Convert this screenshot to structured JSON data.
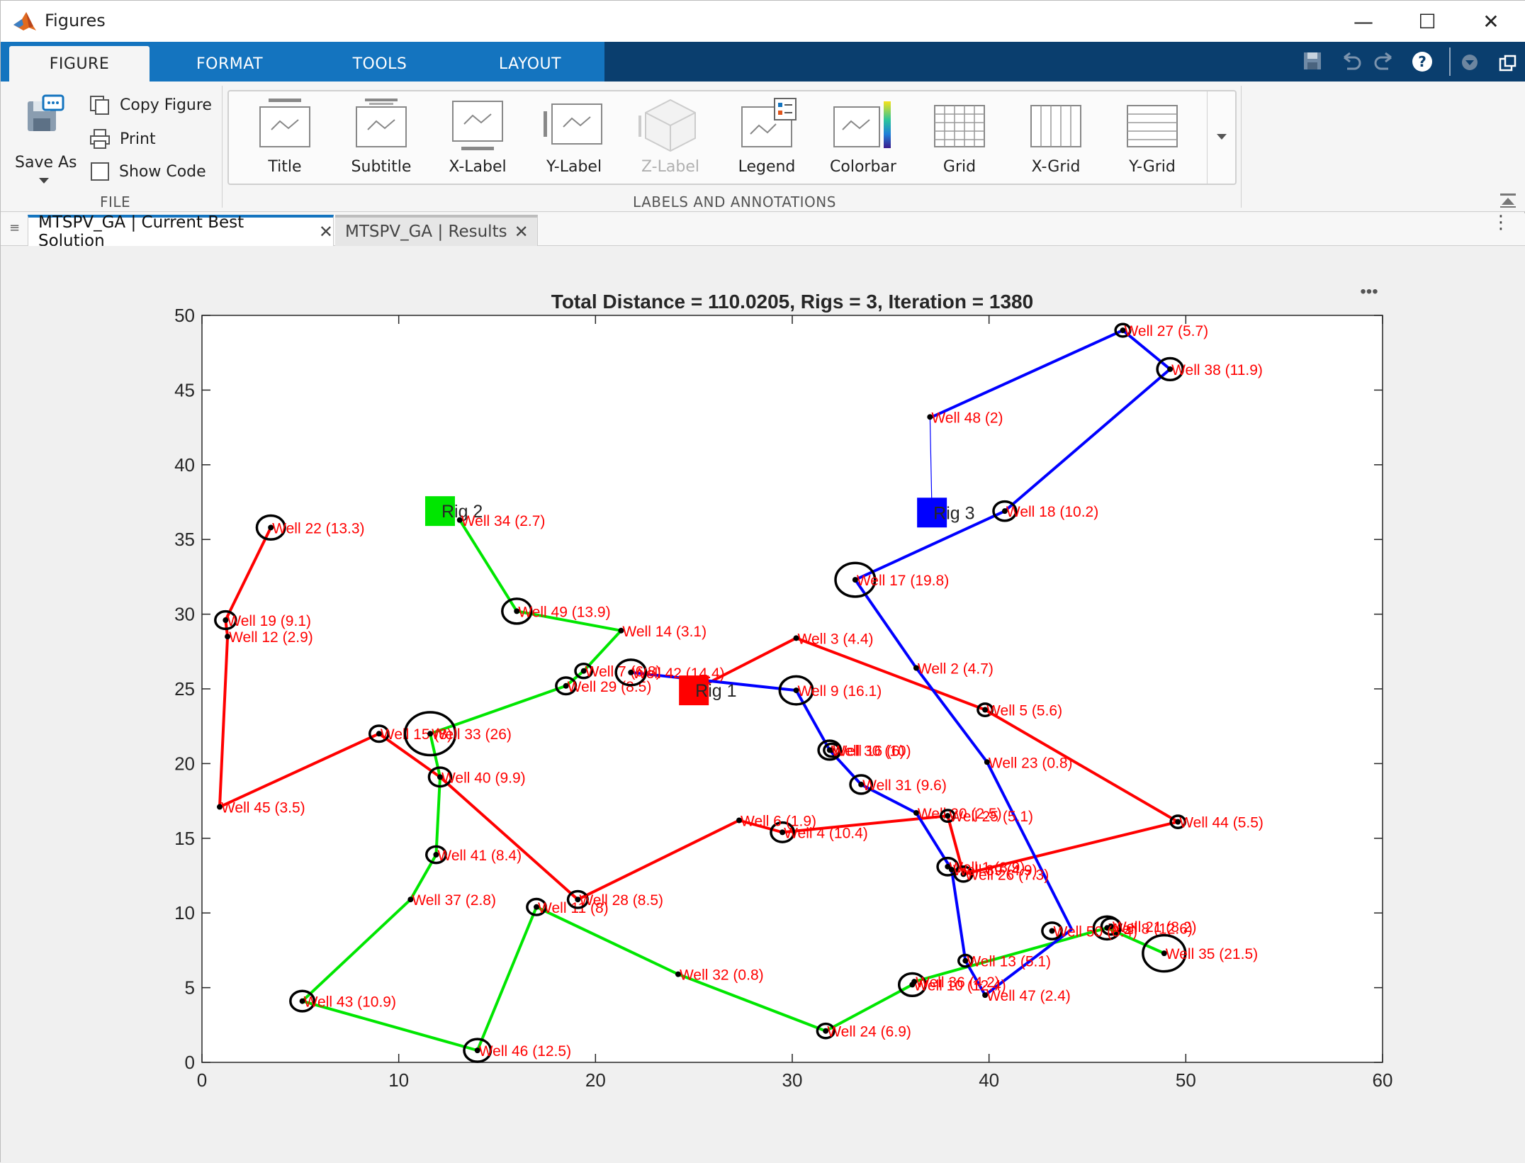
{
  "window": {
    "title": "Figures",
    "controls": {
      "minimize": "—",
      "maximize": "☐",
      "close": "✕"
    }
  },
  "ribbon": {
    "tabs": [
      {
        "label": "FIGURE",
        "active": true
      },
      {
        "label": "FORMAT",
        "active": false
      },
      {
        "label": "TOOLS",
        "active": false
      },
      {
        "label": "LAYOUT",
        "active": false
      }
    ],
    "quick_access": [
      "save-icon",
      "undo-icon",
      "redo-icon",
      "help-icon",
      "dropdown-icon",
      "undock-icon"
    ],
    "file_section": {
      "label": "FILE",
      "save_as": "Save As",
      "copy_figure": "Copy Figure",
      "print": "Print",
      "show_code": "Show Code"
    },
    "labels_section": {
      "label": "LABELS AND ANNOTATIONS",
      "items": [
        {
          "label": "Title",
          "icon": "title-icon",
          "enabled": true
        },
        {
          "label": "Subtitle",
          "icon": "subtitle-icon",
          "enabled": true
        },
        {
          "label": "X-Label",
          "icon": "xlabel-icon",
          "enabled": true
        },
        {
          "label": "Y-Label",
          "icon": "ylabel-icon",
          "enabled": true
        },
        {
          "label": "Z-Label",
          "icon": "zlabel-icon",
          "enabled": false
        },
        {
          "label": "Legend",
          "icon": "legend-icon",
          "enabled": true
        },
        {
          "label": "Colorbar",
          "icon": "colorbar-icon",
          "enabled": true
        },
        {
          "label": "Grid",
          "icon": "grid-icon",
          "enabled": true
        },
        {
          "label": "X-Grid",
          "icon": "xgrid-icon",
          "enabled": true
        },
        {
          "label": "Y-Grid",
          "icon": "ygrid-icon",
          "enabled": true
        }
      ]
    }
  },
  "doc_tabs": [
    {
      "label": "MTSPV_GA | Current Best Solution",
      "active": true
    },
    {
      "label": "MTSPV_GA | Results",
      "active": false
    }
  ],
  "axes_menu": "•••",
  "chart_data": {
    "type": "scatter",
    "title": "Total Distance = 110.0205, Rigs = 3, Iteration = 1380",
    "xlim": [
      0,
      60
    ],
    "ylim": [
      0,
      50
    ],
    "xticks": [
      0,
      10,
      20,
      30,
      40,
      50,
      60
    ],
    "yticks": [
      0,
      5,
      10,
      15,
      20,
      25,
      30,
      35,
      40,
      45,
      50
    ],
    "grid": false,
    "colors": {
      "rig1": "#ff0000",
      "rig2": "#00e600",
      "rig3": "#0000ff",
      "label": "#ff0000",
      "circle": "#000000"
    },
    "rigs": [
      {
        "label": "Rig 1",
        "x": 25.0,
        "y": 24.9,
        "color": "#ff0000"
      },
      {
        "label": "Rig 2",
        "x": 12.1,
        "y": 36.9,
        "color": "#00e600"
      },
      {
        "label": "Rig 3",
        "x": 37.1,
        "y": 36.8,
        "color": "#0000ff"
      }
    ],
    "wells": [
      {
        "label": "Well 1 (8.9)",
        "x": 37.9,
        "y": 13.1,
        "r": 8.9
      },
      {
        "label": "Well 2 (4.7)",
        "x": 36.3,
        "y": 26.4,
        "r": 4.7
      },
      {
        "label": "Well 3 (4.4)",
        "x": 30.2,
        "y": 28.4,
        "r": 4.4
      },
      {
        "label": "Well 4 (10.4)",
        "x": 29.5,
        "y": 15.4,
        "r": 10.4
      },
      {
        "label": "Well 5 (5.6)",
        "x": 39.8,
        "y": 23.6,
        "r": 5.6
      },
      {
        "label": "Well 6 (1.9)",
        "x": 27.3,
        "y": 16.2,
        "r": 1.9
      },
      {
        "label": "Well 7 (6.8)",
        "x": 19.4,
        "y": 26.2,
        "r": 6.8
      },
      {
        "label": "Well 8 (12.6)",
        "x": 46.0,
        "y": 9.0,
        "r": 12.6
      },
      {
        "label": "Well 9 (16.1)",
        "x": 30.2,
        "y": 24.9,
        "r": 16.1
      },
      {
        "label": "Well 10 (12.4)",
        "x": 36.1,
        "y": 5.2,
        "r": 12.4
      },
      {
        "label": "Well 11 (8)",
        "x": 17.0,
        "y": 10.4,
        "r": 8
      },
      {
        "label": "Well 12 (2.9)",
        "x": 1.3,
        "y": 28.5,
        "r": 2.9
      },
      {
        "label": "Well 13 (5.1)",
        "x": 38.8,
        "y": 6.8,
        "r": 5.1
      },
      {
        "label": "Well 14 (3.1)",
        "x": 21.3,
        "y": 28.9,
        "r": 3.1
      },
      {
        "label": "Well 15 (8)",
        "x": 9.0,
        "y": 22.0,
        "r": 8
      },
      {
        "label": "Well 16 (6)",
        "x": 32.0,
        "y": 20.9,
        "r": 6
      },
      {
        "label": "Well 17 (19.8)",
        "x": 33.2,
        "y": 32.3,
        "r": 19.8
      },
      {
        "label": "Well 18 (10.2)",
        "x": 40.8,
        "y": 36.9,
        "r": 10.2
      },
      {
        "label": "Well 19 (9.1)",
        "x": 1.2,
        "y": 29.6,
        "r": 9.1
      },
      {
        "label": "Well 20 (2.5)",
        "x": 36.3,
        "y": 16.7,
        "r": 2.5
      },
      {
        "label": "Well 21 (8.2)",
        "x": 46.2,
        "y": 9.1,
        "r": 8.2
      },
      {
        "label": "Well 22 (13.3)",
        "x": 3.5,
        "y": 35.8,
        "r": 13.3
      },
      {
        "label": "Well 23 (0.8)",
        "x": 39.9,
        "y": 20.1,
        "r": 0.8
      },
      {
        "label": "Well 24 (6.9)",
        "x": 31.7,
        "y": 2.1,
        "r": 6.9
      },
      {
        "label": "Well 25 (5.1)",
        "x": 37.9,
        "y": 16.5,
        "r": 5.1
      },
      {
        "label": "Well 26 (7.3)",
        "x": 38.7,
        "y": 12.6,
        "r": 7.3
      },
      {
        "label": "Well 27 (5.7)",
        "x": 46.8,
        "y": 49.0,
        "r": 5.7
      },
      {
        "label": "Well 28 (8.5)",
        "x": 19.1,
        "y": 10.9,
        "r": 8.5
      },
      {
        "label": "Well 29 (8.5)",
        "x": 18.5,
        "y": 25.2,
        "r": 8.5
      },
      {
        "label": "Well 30 (10)",
        "x": 31.9,
        "y": 20.9,
        "r": 10
      },
      {
        "label": "Well 31 (9.6)",
        "x": 33.5,
        "y": 18.6,
        "r": 9.6
      },
      {
        "label": "Well 32 (0.8)",
        "x": 24.2,
        "y": 5.9,
        "r": 0.8
      },
      {
        "label": "Well 33 (26)",
        "x": 11.6,
        "y": 22.0,
        "r": 26
      },
      {
        "label": "Well 34 (2.7)",
        "x": 13.1,
        "y": 36.3,
        "r": 2.7
      },
      {
        "label": "Well 35 (21.5)",
        "x": 48.9,
        "y": 7.3,
        "r": 21.5
      },
      {
        "label": "Well 36 (4.2)",
        "x": 36.2,
        "y": 5.4,
        "r": 4.2
      },
      {
        "label": "Well 37 (2.8)",
        "x": 10.6,
        "y": 10.9,
        "r": 2.8
      },
      {
        "label": "Well 38 (11.9)",
        "x": 49.2,
        "y": 46.4,
        "r": 11.9
      },
      {
        "label": "Well 39 (4.9)",
        "x": 38.1,
        "y": 12.9,
        "r": 4.9
      },
      {
        "label": "Well 40 (9.9)",
        "x": 12.1,
        "y": 19.1,
        "r": 9.9
      },
      {
        "label": "Well 41 (8.4)",
        "x": 11.9,
        "y": 13.9,
        "r": 8.4
      },
      {
        "label": "Well 42 (14.4)",
        "x": 21.8,
        "y": 26.1,
        "r": 14.4
      },
      {
        "label": "Well 43 (10.9)",
        "x": 5.1,
        "y": 4.1,
        "r": 10.9
      },
      {
        "label": "Well 44 (5.5)",
        "x": 49.6,
        "y": 16.1,
        "r": 5.5
      },
      {
        "label": "Well 45 (3.5)",
        "x": 0.9,
        "y": 17.1,
        "r": 3.5
      },
      {
        "label": "Well 46 (12.5)",
        "x": 14.0,
        "y": 0.8,
        "r": 12.5
      },
      {
        "label": "Well 47 (2.4)",
        "x": 39.8,
        "y": 4.5,
        "r": 2.4
      },
      {
        "label": "Well 48 (2)",
        "x": 37.0,
        "y": 43.2,
        "r": 2
      },
      {
        "label": "Well 49 (13.9)",
        "x": 16.0,
        "y": 30.2,
        "r": 13.9
      },
      {
        "label": "Well 50 (8.4)",
        "x": 43.2,
        "y": 8.8,
        "r": 8.4
      }
    ],
    "routes": [
      {
        "rig": "Rig 1",
        "color": "#ff0000",
        "width": 4,
        "points": [
          [
            25.0,
            24.9
          ],
          [
            30.2,
            28.4
          ],
          [
            39.8,
            23.6
          ],
          [
            49.6,
            16.1
          ],
          [
            38.7,
            12.6
          ],
          [
            37.9,
            16.5
          ],
          [
            29.5,
            15.4
          ],
          [
            27.3,
            16.2
          ],
          [
            19.1,
            10.9
          ],
          [
            12.1,
            19.1
          ],
          [
            9.0,
            22.0
          ],
          [
            0.9,
            17.1
          ],
          [
            1.3,
            28.5
          ],
          [
            1.2,
            29.6
          ],
          [
            3.5,
            35.8
          ]
        ]
      },
      {
        "rig": "Rig 2",
        "color": "#00e600",
        "width": 4,
        "points": [
          [
            13.1,
            36.3
          ],
          [
            16.0,
            30.2
          ],
          [
            21.3,
            28.9
          ],
          [
            19.4,
            26.2
          ],
          [
            18.5,
            25.2
          ],
          [
            11.6,
            22.0
          ],
          [
            12.1,
            19.1
          ],
          [
            11.9,
            13.9
          ],
          [
            10.6,
            10.9
          ],
          [
            5.1,
            4.1
          ],
          [
            14.0,
            0.8
          ],
          [
            17.0,
            10.4
          ],
          [
            24.2,
            5.9
          ],
          [
            31.7,
            2.1
          ],
          [
            36.1,
            5.2
          ],
          [
            36.2,
            5.4
          ],
          [
            46.0,
            9.0
          ],
          [
            48.9,
            7.3
          ]
        ]
      },
      {
        "rig": "Rig 3",
        "color": "#0000ff",
        "width": 4,
        "points": [
          [
            37.1,
            43.2
          ],
          [
            46.8,
            49.0
          ],
          [
            49.2,
            46.4
          ],
          [
            40.8,
            36.9
          ],
          [
            33.2,
            32.3
          ],
          [
            36.3,
            26.4
          ],
          [
            39.9,
            20.1
          ],
          [
            44.2,
            8.9
          ],
          [
            39.8,
            4.5
          ],
          [
            38.8,
            6.8
          ],
          [
            38.1,
            12.9
          ],
          [
            36.3,
            16.7
          ],
          [
            33.5,
            18.6
          ],
          [
            31.9,
            20.9
          ],
          [
            30.2,
            24.9
          ],
          [
            21.8,
            26.1
          ]
        ]
      }
    ],
    "thin_lines": [
      {
        "color": "#ff0000",
        "points": [
          [
            25.0,
            24.9
          ],
          [
            30.2,
            28.4
          ]
        ]
      },
      {
        "color": "#0000ff",
        "points": [
          [
            37.0,
            43.2
          ],
          [
            37.1,
            36.8
          ]
        ]
      }
    ]
  }
}
